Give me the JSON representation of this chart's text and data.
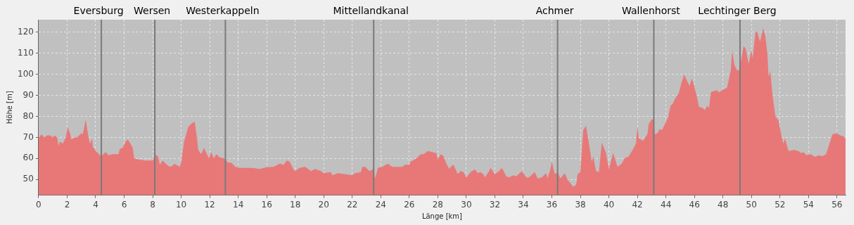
{
  "chart_data": {
    "type": "area",
    "xlabel": "Länge [km]",
    "ylabel": "Höhe [m]",
    "xlim": [
      0,
      56.6
    ],
    "xticks": [
      0,
      2,
      4,
      6,
      8,
      10,
      12,
      14,
      16,
      18,
      20,
      22,
      24,
      26,
      28,
      30,
      32,
      34,
      36,
      38,
      40,
      42,
      44,
      46,
      48,
      50,
      52,
      54,
      56
    ],
    "ylim": [
      42.5,
      126
    ],
    "yticks": [
      50,
      60,
      70,
      80,
      90,
      100,
      110,
      120
    ],
    "grid": true,
    "series": [
      {
        "color": "#e87878",
        "x": [
          0,
          0.2,
          0.4,
          0.6,
          0.8,
          1.0,
          1.1,
          1.3,
          1.4,
          1.5,
          1.7,
          1.9,
          2.05,
          2.2,
          2.3,
          2.5,
          2.7,
          3.0,
          3.1,
          3.3,
          3.5,
          3.6,
          3.75,
          3.8,
          4.0,
          4.4,
          4.7,
          4.9,
          5.2,
          5.6,
          5.7,
          5.9,
          6.1,
          6.25,
          6.4,
          6.6,
          6.7,
          7.0,
          7.5,
          8.0,
          8.2,
          8.4,
          8.5,
          8.7,
          9.0,
          9.2,
          9.4,
          9.5,
          9.9,
          10.0,
          10.2,
          10.5,
          10.7,
          10.95,
          11.1,
          11.2,
          11.4,
          11.6,
          11.8,
          11.95,
          12.1,
          12.3,
          12.45,
          12.7,
          13.0,
          13.3,
          13.5,
          13.8,
          14.1,
          14.5,
          15.0,
          15.5,
          16.0,
          16.5,
          16.9,
          17.2,
          17.4,
          17.6,
          17.9,
          18.0,
          18.3,
          18.7,
          19.1,
          19.4,
          19.8,
          20.0,
          20.5,
          20.6,
          21.0,
          21.5,
          22.0,
          22.2,
          22.6,
          22.7,
          22.9,
          23.2,
          23.5,
          23.6,
          23.8,
          24.1,
          24.5,
          24.8,
          25.5,
          25.7,
          26.0,
          26.1,
          26.5,
          26.8,
          27.0,
          27.3,
          27.6,
          27.9,
          28.0,
          28.2,
          28.4,
          28.6,
          28.8,
          28.9,
          29.1,
          29.2,
          29.4,
          29.6,
          29.8,
          30.0,
          30.3,
          30.6,
          30.8,
          31.0,
          31.2,
          31.3,
          31.6,
          31.7,
          32.0,
          32.3,
          32.5,
          32.8,
          33.0,
          33.3,
          33.5,
          33.9,
          34.2,
          34.4,
          34.8,
          35.0,
          35.3,
          35.6,
          35.7,
          35.9,
          36.0,
          36.2,
          36.4,
          36.6,
          36.9,
          37.1,
          37.5,
          37.7,
          37.8,
          38.0,
          38.2,
          38.4,
          38.6,
          38.8,
          38.9,
          39.1,
          39.3,
          39.5,
          39.6,
          39.8,
          40.0,
          40.3,
          40.4,
          40.6,
          40.9,
          41.1,
          41.4,
          41.7,
          41.9,
          42.0,
          42.1,
          42.4,
          42.7,
          42.8,
          43.0,
          43.12,
          43.23,
          43.4,
          43.57,
          43.73,
          43.9,
          44.15,
          44.32,
          44.48,
          44.65,
          44.9,
          45.07,
          45.28,
          45.48,
          45.65,
          45.82,
          45.98,
          46.15,
          46.32,
          46.57,
          46.73,
          46.9,
          47.02,
          47.15,
          47.32,
          47.57,
          47.73,
          48.07,
          48.28,
          48.55,
          48.65,
          48.8,
          48.98,
          49.15,
          49.45,
          49.6,
          49.8,
          50.0,
          50.08,
          50.28,
          50.4,
          50.6,
          50.82,
          50.98,
          51.12,
          51.2,
          51.32,
          51.48,
          51.68,
          51.9,
          52.07,
          52.23,
          52.35,
          52.6,
          52.98,
          53.3,
          53.48,
          53.65,
          53.85,
          54.15,
          54.45,
          54.73,
          54.98,
          55.23,
          55.45,
          55.68,
          55.98,
          56.23,
          56.45,
          56.6
        ],
        "values": [
          69.8,
          71.5,
          70,
          71,
          71,
          70,
          71,
          70,
          66,
          68,
          67,
          70,
          75,
          72,
          69,
          70,
          70,
          72,
          71.5,
          78.5,
          70,
          67,
          69.5,
          65.5,
          63.5,
          61,
          63,
          61.5,
          62,
          62,
          64.5,
          65,
          68,
          69,
          67.5,
          65,
          60,
          59.5,
          59,
          59,
          62,
          60.5,
          57,
          59,
          57,
          56,
          56.5,
          57.5,
          56,
          58,
          68,
          75,
          76.5,
          77.5,
          70,
          64,
          62,
          65,
          62,
          60,
          63,
          60,
          62,
          60.5,
          60,
          58,
          58,
          56,
          55.5,
          55.5,
          55.5,
          55,
          55.8,
          56,
          57.5,
          57,
          59,
          58.5,
          54.5,
          54,
          55.5,
          56,
          54,
          55,
          54,
          53,
          53.5,
          52,
          53,
          52.5,
          52,
          53,
          53.5,
          56,
          56,
          54,
          55,
          50.5,
          55.5,
          56,
          57.5,
          56,
          56,
          57,
          57,
          58.5,
          60,
          62,
          62,
          63.5,
          63,
          62.5,
          59.5,
          62,
          61,
          57.5,
          55,
          56,
          57,
          55.5,
          52.5,
          54,
          53.5,
          51,
          53.5,
          54.8,
          53,
          53.5,
          52.5,
          51,
          54,
          55.5,
          52.5,
          54,
          55.5,
          51.5,
          51,
          52,
          51.5,
          54,
          51,
          51,
          53.5,
          50.5,
          51,
          53,
          50.5,
          55,
          58.5,
          52.5,
          53.5,
          50.5,
          53,
          50,
          46.5,
          47.5,
          52.5,
          53.5,
          73.5,
          75.5,
          67,
          58.5,
          61,
          54,
          53.5,
          67.5,
          66,
          62.5,
          55,
          62.5,
          60.5,
          56,
          57.5,
          60,
          61,
          64.5,
          67,
          75,
          69.5,
          68.5,
          71.5,
          76.5,
          78.5,
          78.5,
          71.5,
          72,
          74,
          73.5,
          76,
          79.5,
          85,
          86,
          88.5,
          91,
          95.5,
          100,
          97,
          94.5,
          98,
          94.5,
          90,
          84.5,
          84,
          83,
          85,
          84,
          91.5,
          92,
          92.5,
          91.5,
          93,
          93.5,
          102,
          111.5,
          104.5,
          102,
          102,
          113.5,
          112,
          105,
          111.5,
          107.5,
          120,
          120.5,
          115.5,
          122,
          118,
          109.5,
          99,
          101.5,
          90,
          80,
          78,
          72,
          67,
          69.5,
          63.5,
          64,
          63.5,
          62.5,
          63,
          61.5,
          62,
          60.8,
          61.5,
          61,
          62,
          66.5,
          71.5,
          72,
          71,
          70.5,
          69.5
        ]
      }
    ],
    "ref_lines": [
      {
        "axis": "x",
        "value": 4.4,
        "label": "Eversburg",
        "color": "#7a7a7a"
      },
      {
        "axis": "x",
        "value": 8.15,
        "label": "Wersen",
        "color": "#7a7a7a"
      },
      {
        "axis": "x",
        "value": 13.1,
        "label": "Westerkappeln",
        "color": "#7a7a7a"
      },
      {
        "axis": "x",
        "value": 23.5,
        "label": "Mittellandkanal",
        "color": "#7a7a7a"
      },
      {
        "axis": "x",
        "value": 36.4,
        "label": "Achmer",
        "color": "#7a7a7a"
      },
      {
        "axis": "x",
        "value": 43.15,
        "label": "Wallenhorst",
        "color": "#7a7a7a"
      },
      {
        "axis": "x",
        "value": 49.2,
        "label": "Lechtinger Berg",
        "color": "#7a7a7a"
      }
    ]
  }
}
